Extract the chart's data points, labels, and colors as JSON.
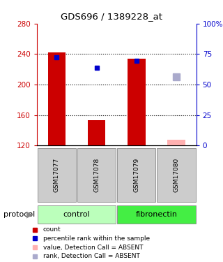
{
  "title": "GDS696 / 1389228_at",
  "samples": [
    "GSM17077",
    "GSM17078",
    "GSM17079",
    "GSM17080"
  ],
  "bar_values": [
    242,
    153,
    234,
    null
  ],
  "bar_bottom": 120,
  "bar_color": "#cc0000",
  "blue_square_values": [
    236,
    222,
    231,
    null
  ],
  "blue_square_color": "#0000cc",
  "pink_bar_values": [
    null,
    null,
    null,
    127
  ],
  "pink_bar_color": "#ffb0b0",
  "lavender_square_values": [
    null,
    null,
    null,
    210
  ],
  "lavender_square_color": "#aaaacc",
  "ylim_left": [
    120,
    280
  ],
  "ylim_right": [
    0,
    100
  ],
  "yticks_left": [
    120,
    160,
    200,
    240,
    280
  ],
  "yticks_right": [
    0,
    25,
    50,
    75,
    100
  ],
  "ytick_labels_right": [
    "0",
    "25",
    "50",
    "75",
    "100%"
  ],
  "left_tick_color": "#cc0000",
  "right_tick_color": "#0000cc",
  "group_colors": {
    "control": "#bbffbb",
    "fibronectin": "#44ee44"
  },
  "sample_box_color": "#cccccc",
  "hline_values": [
    160,
    200,
    240
  ],
  "groups_info": [
    {
      "label": "control",
      "start": 0,
      "end": 2,
      "color": "#bbffbb"
    },
    {
      "label": "fibronectin",
      "start": 2,
      "end": 4,
      "color": "#44ee44"
    }
  ],
  "legend_items": [
    {
      "label": "count",
      "color": "#cc0000"
    },
    {
      "label": "percentile rank within the sample",
      "color": "#0000cc"
    },
    {
      "label": "value, Detection Call = ABSENT",
      "color": "#ffb0b0"
    },
    {
      "label": "rank, Detection Call = ABSENT",
      "color": "#aaaacc"
    }
  ],
  "protocol_label": "protocol"
}
